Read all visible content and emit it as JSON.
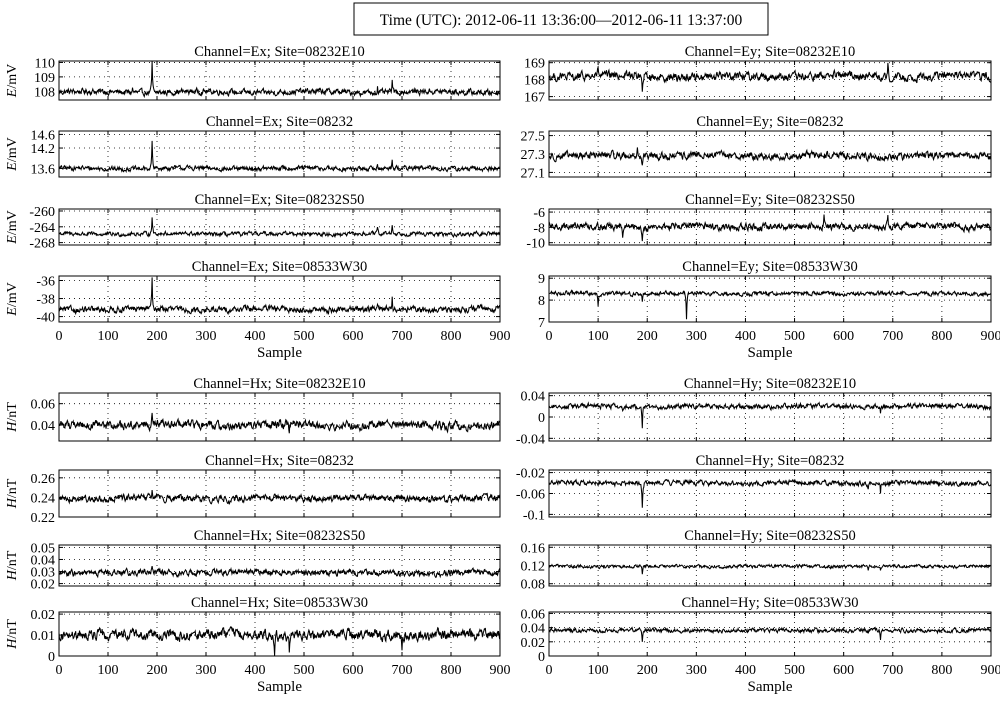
{
  "figure_title": "Time (UTC): 2012-06-11 13:36:00—2012-06-11 13:37:00",
  "chart_data": [
    {
      "type": "line",
      "title": "Channel=Ex; Site=08232E10",
      "ylabel_italic": "E",
      "ylabel_unit": "/mV",
      "yticks": [
        "108",
        "109",
        "110"
      ],
      "ylim": [
        107.4,
        110.1
      ],
      "baseline": 107.95,
      "noise": 0.18,
      "xlim": [
        0,
        900
      ],
      "xticks": [
        "0",
        "100",
        "200",
        "300",
        "400",
        "500",
        "600",
        "700",
        "800",
        "900"
      ],
      "xlabel": "",
      "spikes": [
        {
          "x": 190,
          "v": 2.1
        },
        {
          "x": 680,
          "v": 0.9
        },
        {
          "x": 650,
          "v": 0.45
        },
        {
          "x": 150,
          "v": 0.3
        }
      ]
    },
    {
      "type": "line",
      "title": "Channel=Ex; Site=08232",
      "ylabel_italic": "E",
      "ylabel_unit": "/mV",
      "yticks": [
        "13.6",
        "14.2",
        "14.6"
      ],
      "ylim": [
        13.35,
        14.7
      ],
      "baseline": 13.6,
      "noise": 0.06,
      "xlim": [
        0,
        900
      ],
      "xticks": [
        "0",
        "100",
        "200",
        "300",
        "400",
        "500",
        "600",
        "700",
        "800",
        "900"
      ],
      "xlabel": "",
      "spikes": [
        {
          "x": 190,
          "v": 0.8
        },
        {
          "x": 680,
          "v": 0.3
        },
        {
          "x": 650,
          "v": 0.15
        }
      ]
    },
    {
      "type": "line",
      "title": "Channel=Ex; Site=08232S50",
      "ylabel_italic": "E",
      "ylabel_unit": "/mV",
      "yticks": [
        "-268",
        "-264",
        "-260"
      ],
      "ylim": [
        -268.6,
        -259.5
      ],
      "baseline": -265.8,
      "noise": 0.45,
      "xlim": [
        0,
        900
      ],
      "xticks": [
        "0",
        "100",
        "200",
        "300",
        "400",
        "500",
        "600",
        "700",
        "800",
        "900"
      ],
      "xlabel": "",
      "spikes": [
        {
          "x": 190,
          "v": 4.5
        },
        {
          "x": 680,
          "v": 2.0
        },
        {
          "x": 650,
          "v": 1.2
        }
      ]
    },
    {
      "type": "line",
      "title": "Channel=Ex; Site=08533W30",
      "ylabel_italic": "E",
      "ylabel_unit": "/mV",
      "yticks": [
        "-40",
        "-38",
        "-36"
      ],
      "ylim": [
        -40.6,
        -35.5
      ],
      "baseline": -39.2,
      "noise": 0.3,
      "xlim": [
        0,
        900
      ],
      "xticks": [
        "0",
        "100",
        "200",
        "300",
        "400",
        "500",
        "600",
        "700",
        "800",
        "900"
      ],
      "xlabel": "Sample",
      "spikes": [
        {
          "x": 190,
          "v": 3.6
        },
        {
          "x": 680,
          "v": 1.8
        },
        {
          "x": 650,
          "v": 0.8
        }
      ]
    },
    {
      "type": "line",
      "title": "Channel=Ey; Site=08232E10",
      "ylabel_italic": "",
      "ylabel_unit": "",
      "yticks": [
        "167",
        "168",
        "169"
      ],
      "ylim": [
        166.8,
        169.1
      ],
      "baseline": 168.2,
      "noise": 0.22,
      "xlim": [
        0,
        900
      ],
      "xticks": [
        "0",
        "100",
        "200",
        "300",
        "400",
        "500",
        "600",
        "700",
        "800",
        "900"
      ],
      "xlabel": "",
      "spikes": [
        {
          "x": 190,
          "v": -1.2
        },
        {
          "x": 100,
          "v": 0.5
        },
        {
          "x": 690,
          "v": 0.7
        }
      ]
    },
    {
      "type": "line",
      "title": "Channel=Ey; Site=08232",
      "ylabel_italic": "",
      "ylabel_unit": "",
      "yticks": [
        "27.1",
        "27.3",
        "27.5"
      ],
      "ylim": [
        27.05,
        27.55
      ],
      "baseline": 27.28,
      "noise": 0.035,
      "xlim": [
        0,
        900
      ],
      "xticks": [
        "0",
        "100",
        "200",
        "300",
        "400",
        "500",
        "600",
        "700",
        "800",
        "900"
      ],
      "xlabel": "",
      "spikes": [
        {
          "x": 190,
          "v": -0.1
        },
        {
          "x": 180,
          "v": 0.1
        }
      ]
    },
    {
      "type": "line",
      "title": "Channel=Ey; Site=08232S50",
      "ylabel_italic": "",
      "ylabel_unit": "",
      "yticks": [
        "-10",
        "-8",
        "-6"
      ],
      "ylim": [
        -10.3,
        -5.6
      ],
      "baseline": -7.9,
      "noise": 0.4,
      "xlim": [
        0,
        900
      ],
      "xticks": [
        "0",
        "100",
        "200",
        "300",
        "400",
        "500",
        "600",
        "700",
        "800",
        "900"
      ],
      "xlabel": "",
      "spikes": [
        {
          "x": 190,
          "v": -1.8
        },
        {
          "x": 560,
          "v": 1.6
        },
        {
          "x": 690,
          "v": 1.5
        },
        {
          "x": 150,
          "v": -1.2
        }
      ]
    },
    {
      "type": "line",
      "title": "Channel=Ey; Site=08533W30",
      "ylabel_italic": "",
      "ylabel_unit": "",
      "yticks": [
        "7",
        "8",
        "9"
      ],
      "ylim": [
        7.0,
        9.1
      ],
      "baseline": 8.3,
      "noise": 0.08,
      "xlim": [
        0,
        900
      ],
      "xticks": [
        "0",
        "100",
        "200",
        "300",
        "400",
        "500",
        "600",
        "700",
        "800",
        "900"
      ],
      "xlabel": "Sample",
      "spikes": [
        {
          "x": 280,
          "v": -1.2
        },
        {
          "x": 100,
          "v": -0.5
        },
        {
          "x": 190,
          "v": -0.4
        }
      ]
    },
    {
      "type": "line",
      "title": "Channel=Hx; Site=08232E10",
      "ylabel_italic": "H",
      "ylabel_unit": "/nT",
      "yticks": [
        "0.04",
        "0.06"
      ],
      "ylim": [
        0.025,
        0.07
      ],
      "baseline": 0.04,
      "noise": 0.0035,
      "xlim": [
        0,
        900
      ],
      "xticks": [
        "0",
        "100",
        "200",
        "300",
        "400",
        "500",
        "600",
        "700",
        "800",
        "900"
      ],
      "xlabel": "",
      "spikes": [
        {
          "x": 190,
          "v": 0.01
        },
        {
          "x": 470,
          "v": -0.008
        }
      ]
    },
    {
      "type": "line",
      "title": "Channel=Hx; Site=08232",
      "ylabel_italic": "H",
      "ylabel_unit": "/nT",
      "yticks": [
        "0.22",
        "0.24",
        "0.26"
      ],
      "ylim": [
        0.22,
        0.268
      ],
      "baseline": 0.239,
      "noise": 0.003,
      "xlim": [
        0,
        900
      ],
      "xticks": [
        "0",
        "100",
        "200",
        "300",
        "400",
        "500",
        "600",
        "700",
        "800",
        "900"
      ],
      "xlabel": "",
      "spikes": [
        {
          "x": 190,
          "v": 0.01
        }
      ]
    },
    {
      "type": "line",
      "title": "Channel=Hx; Site=08232S50",
      "ylabel_italic": "H",
      "ylabel_unit": "/nT",
      "yticks": [
        "0.02",
        "0.03",
        "0.04",
        "0.05"
      ],
      "ylim": [
        0.018,
        0.052
      ],
      "baseline": 0.029,
      "noise": 0.0022,
      "xlim": [
        0,
        900
      ],
      "xticks": [
        "0",
        "100",
        "200",
        "300",
        "400",
        "500",
        "600",
        "700",
        "800",
        "900"
      ],
      "xlabel": "",
      "spikes": [
        {
          "x": 190,
          "v": 0.006
        }
      ]
    },
    {
      "type": "line",
      "title": "Channel=Hx; Site=08533W30",
      "ylabel_italic": "H",
      "ylabel_unit": "/nT",
      "yticks": [
        "0",
        "0.01",
        "0.02"
      ],
      "ylim": [
        0,
        0.021
      ],
      "baseline": 0.01,
      "noise": 0.0022,
      "xlim": [
        0,
        900
      ],
      "xticks": [
        "0",
        "100",
        "200",
        "300",
        "400",
        "500",
        "600",
        "700",
        "800",
        "900"
      ],
      "xlabel": "Sample",
      "spikes": [
        {
          "x": 440,
          "v": -0.008
        },
        {
          "x": 470,
          "v": -0.007
        },
        {
          "x": 700,
          "v": -0.006
        }
      ]
    },
    {
      "type": "line",
      "title": "Channel=Hy; Site=08232E10",
      "ylabel_italic": "",
      "ylabel_unit": "",
      "yticks": [
        "-0.04",
        "0",
        "0.04"
      ],
      "ylim": [
        -0.045,
        0.045
      ],
      "baseline": 0.02,
      "noise": 0.004,
      "xlim": [
        0,
        900
      ],
      "xticks": [
        "0",
        "100",
        "200",
        "300",
        "400",
        "500",
        "600",
        "700",
        "800",
        "900"
      ],
      "xlabel": "",
      "spikes": [
        {
          "x": 190,
          "v": -0.042
        },
        {
          "x": 675,
          "v": -0.015
        },
        {
          "x": 150,
          "v": -0.01
        }
      ]
    },
    {
      "type": "line",
      "title": "Channel=Hy; Site=08232",
      "ylabel_italic": "",
      "ylabel_unit": "",
      "yticks": [
        "-0.1",
        "-0.06",
        "-0.02"
      ],
      "ylim": [
        -0.105,
        -0.015
      ],
      "baseline": -0.04,
      "noise": 0.004,
      "xlim": [
        0,
        900
      ],
      "xticks": [
        "0",
        "100",
        "200",
        "300",
        "400",
        "500",
        "600",
        "700",
        "800",
        "900"
      ],
      "xlabel": "",
      "spikes": [
        {
          "x": 190,
          "v": -0.048
        },
        {
          "x": 675,
          "v": -0.02
        },
        {
          "x": 650,
          "v": -0.012
        }
      ]
    },
    {
      "type": "line",
      "title": "Channel=Hy; Site=08232S50",
      "ylabel_italic": "",
      "ylabel_unit": "",
      "yticks": [
        "0.08",
        "0.12",
        "0.16"
      ],
      "ylim": [
        0.075,
        0.165
      ],
      "baseline": 0.118,
      "noise": 0.003,
      "xlim": [
        0,
        900
      ],
      "xticks": [
        "0",
        "100",
        "200",
        "300",
        "400",
        "500",
        "600",
        "700",
        "800",
        "900"
      ],
      "xlabel": "",
      "spikes": [
        {
          "x": 190,
          "v": -0.02
        },
        {
          "x": 675,
          "v": -0.012
        },
        {
          "x": 650,
          "v": -0.008
        }
      ]
    },
    {
      "type": "line",
      "title": "Channel=Hy; Site=08533W30",
      "ylabel_italic": "",
      "ylabel_unit": "",
      "yticks": [
        "0",
        "0.02",
        "0.04",
        "0.06"
      ],
      "ylim": [
        0,
        0.062
      ],
      "baseline": 0.036,
      "noise": 0.0025,
      "xlim": [
        0,
        900
      ],
      "xticks": [
        "0",
        "100",
        "200",
        "300",
        "400",
        "500",
        "600",
        "700",
        "800",
        "900"
      ],
      "xlabel": "Sample",
      "spikes": [
        {
          "x": 190,
          "v": -0.016
        },
        {
          "x": 675,
          "v": -0.012
        },
        {
          "x": 650,
          "v": -0.006
        }
      ]
    }
  ]
}
